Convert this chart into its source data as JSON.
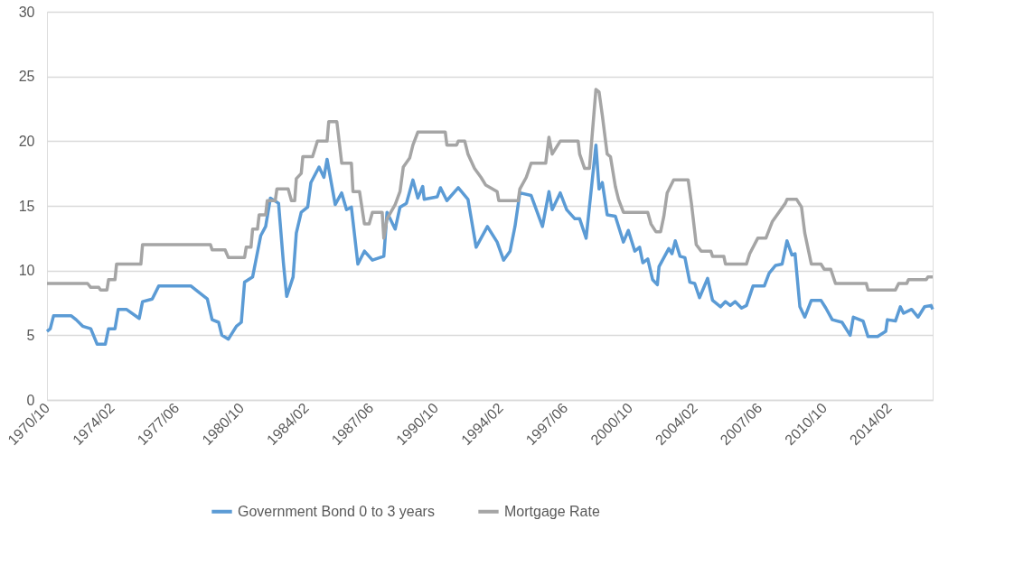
{
  "chart_data": {
    "type": "line",
    "xlim": [
      "1970-10",
      "2016-05"
    ],
    "xticks": [
      {
        "value": "1970-10",
        "label": "1970/10"
      },
      {
        "value": "1974-02",
        "label": "1974/02"
      },
      {
        "value": "1977-06",
        "label": "1977/06"
      },
      {
        "value": "1980-10",
        "label": "1980/10"
      },
      {
        "value": "1984-02",
        "label": "1984/02"
      },
      {
        "value": "1987-06",
        "label": "1987/06"
      },
      {
        "value": "1990-10",
        "label": "1990/10"
      },
      {
        "value": "1994-02",
        "label": "1994/02"
      },
      {
        "value": "1997-06",
        "label": "1997/06"
      },
      {
        "value": "2000-10",
        "label": "2000/10"
      },
      {
        "value": "2004-02",
        "label": "2004/02"
      },
      {
        "value": "2007-06",
        "label": "2007/06"
      },
      {
        "value": "2010-10",
        "label": "2010/10"
      },
      {
        "value": "2014-02",
        "label": "2014/02"
      }
    ],
    "ylim": [
      0,
      30
    ],
    "yticks": [
      0,
      5,
      10,
      15,
      20,
      25,
      30
    ],
    "grid": "y",
    "legend": "bottom",
    "line_style": "solid",
    "series": [
      {
        "name": "Government Bond 0 to 3 years",
        "color": "#5b9bd5",
        "x": [
          "1970-10",
          "1970-12",
          "1971-02",
          "1972-01",
          "1972-04",
          "1972-08",
          "1973-01",
          "1973-05",
          "1973-10",
          "1973-12",
          "1974-04",
          "1974-06",
          "1974-11",
          "1975-07",
          "1975-09",
          "1976-03",
          "1976-07",
          "1978-03",
          "1978-07",
          "1979-01",
          "1979-04",
          "1979-08",
          "1979-10",
          "1980-02",
          "1980-07",
          "1980-10",
          "1980-12",
          "1981-05",
          "1981-10",
          "1982-01",
          "1982-04",
          "1982-09",
          "1982-12",
          "1983-02",
          "1983-06",
          "1983-08",
          "1983-11",
          "1984-03",
          "1984-05",
          "1984-10",
          "1985-01",
          "1985-03",
          "1985-08",
          "1985-12",
          "1986-03",
          "1986-06",
          "1986-10",
          "1987-02",
          "1987-07",
          "1988-02",
          "1988-04",
          "1988-09",
          "1988-12",
          "1989-04",
          "1989-08",
          "1989-11",
          "1990-02",
          "1990-03",
          "1990-11",
          "1991-01",
          "1991-05",
          "1991-12",
          "1992-06",
          "1992-11",
          "1993-02",
          "1993-06",
          "1993-12",
          "1994-04",
          "1994-08",
          "1994-11",
          "1995-02",
          "1995-09",
          "1996-04",
          "1996-08",
          "1996-10",
          "1997-03",
          "1997-07",
          "1997-12",
          "1998-03",
          "1998-07",
          "1999-01",
          "1999-03",
          "1999-05",
          "1999-08",
          "2000-01",
          "2000-06",
          "2000-09",
          "2001-01",
          "2001-04",
          "2001-06",
          "2001-09",
          "2001-12",
          "2002-03",
          "2002-04",
          "2002-10",
          "2002-12",
          "2003-02",
          "2003-05",
          "2003-08",
          "2003-11",
          "2004-02",
          "2004-05",
          "2004-10",
          "2005-01",
          "2005-06",
          "2005-09",
          "2005-12",
          "2006-03",
          "2006-07",
          "2006-10",
          "2007-02",
          "2007-07",
          "2007-09",
          "2007-12",
          "2008-04",
          "2008-08",
          "2008-11",
          "2009-02",
          "2009-04",
          "2009-07",
          "2009-10",
          "2010-02",
          "2010-08",
          "2010-11",
          "2011-03",
          "2011-09",
          "2012-02",
          "2012-04",
          "2012-10",
          "2013-01",
          "2013-07",
          "2013-12",
          "2014-01",
          "2014-06",
          "2014-09",
          "2014-11",
          "2015-04",
          "2015-08",
          "2015-12",
          "2016-04",
          "2016-05"
        ],
        "values": [
          5.3,
          5.5,
          6.5,
          6.5,
          6.2,
          5.7,
          5.5,
          4.3,
          4.3,
          5.5,
          5.5,
          7.0,
          7.0,
          6.3,
          7.6,
          7.8,
          8.8,
          8.8,
          8.4,
          7.8,
          6.2,
          6.0,
          5.0,
          4.7,
          5.7,
          6.0,
          9.1,
          9.5,
          12.7,
          13.4,
          15.6,
          15.2,
          10.6,
          8.0,
          9.5,
          12.9,
          14.5,
          14.9,
          16.8,
          18.0,
          17.2,
          18.6,
          15.1,
          16.0,
          14.7,
          14.9,
          10.5,
          11.5,
          10.8,
          11.1,
          14.5,
          13.2,
          14.9,
          15.2,
          17.0,
          15.6,
          16.5,
          15.5,
          15.7,
          16.4,
          15.4,
          16.4,
          15.5,
          11.8,
          12.5,
          13.4,
          12.2,
          10.8,
          11.5,
          13.4,
          16.0,
          15.8,
          13.4,
          16.1,
          14.7,
          16.0,
          14.7,
          14.0,
          14.0,
          12.5,
          19.7,
          16.3,
          16.8,
          14.3,
          14.2,
          12.2,
          13.1,
          11.5,
          11.8,
          10.6,
          10.9,
          9.3,
          8.9,
          10.3,
          11.7,
          11.3,
          12.3,
          11.1,
          11.0,
          9.1,
          9.0,
          7.9,
          9.4,
          7.7,
          7.2,
          7.6,
          7.3,
          7.6,
          7.1,
          7.3,
          8.8,
          8.8,
          8.8,
          9.8,
          10.4,
          10.5,
          12.3,
          11.2,
          11.3,
          7.2,
          6.4,
          7.7,
          7.7,
          7.1,
          6.2,
          6.0,
          5.0,
          6.4,
          6.1,
          4.9,
          4.9,
          5.3,
          6.2,
          6.1,
          7.2,
          6.7,
          7.0,
          6.4,
          7.2,
          7.3,
          7.0
        ]
      },
      {
        "name": "Mortgage Rate",
        "color": "#a5a5a5",
        "x": [
          "1970-10",
          "1972-11",
          "1973-01",
          "1973-06",
          "1973-07",
          "1973-11",
          "1973-12",
          "1974-04",
          "1974-05",
          "1975-08",
          "1975-09",
          "1979-03",
          "1979-04",
          "1979-12",
          "1980-02",
          "1980-12",
          "1981-01",
          "1981-04",
          "1981-05",
          "1981-08",
          "1981-09",
          "1982-01",
          "1982-02",
          "1982-07",
          "1982-08",
          "1983-03",
          "1983-05",
          "1983-07",
          "1983-08",
          "1983-11",
          "1983-12",
          "1984-06",
          "1984-09",
          "1985-03",
          "1985-04",
          "1985-09",
          "1985-12",
          "1986-06",
          "1986-07",
          "1986-11",
          "1987-02",
          "1987-05",
          "1987-07",
          "1988-01",
          "1988-02",
          "1988-04",
          "1988-09",
          "1988-12",
          "1989-02",
          "1989-06",
          "1989-08",
          "1989-11",
          "1991-04",
          "1991-05",
          "1991-11",
          "1991-12",
          "1992-04",
          "1992-06",
          "1992-10",
          "1993-02",
          "1993-05",
          "1993-12",
          "1994-01",
          "1995-01",
          "1995-02",
          "1995-06",
          "1995-09",
          "1996-06",
          "1996-08",
          "1996-10",
          "1997-03",
          "1998-02",
          "1998-03",
          "1998-06",
          "1998-09",
          "1999-01",
          "1999-03",
          "1999-05",
          "1999-08",
          "1999-10",
          "2000-01",
          "2000-03",
          "2000-06",
          "2001-09",
          "2001-11",
          "2002-02",
          "2002-05",
          "2002-07",
          "2002-09",
          "2003-01",
          "2003-10",
          "2003-12",
          "2004-03",
          "2004-06",
          "2004-12",
          "2005-01",
          "2005-08",
          "2005-09",
          "2006-10",
          "2006-12",
          "2007-05",
          "2007-10",
          "2008-02",
          "2008-06",
          "2008-10",
          "2008-11",
          "2009-05",
          "2009-08",
          "2009-10",
          "2010-01",
          "2010-02",
          "2010-08",
          "2010-10",
          "2011-02",
          "2011-05",
          "2012-12",
          "2013-01",
          "2014-06",
          "2014-08",
          "2015-01",
          "2015-02",
          "2016-01",
          "2016-02",
          "2016-05"
        ],
        "values": [
          9.0,
          9.0,
          8.7,
          8.7,
          8.5,
          8.5,
          9.3,
          9.3,
          10.5,
          10.5,
          12.0,
          12.0,
          11.6,
          11.6,
          11.0,
          11.0,
          11.8,
          11.8,
          13.2,
          13.2,
          14.3,
          14.3,
          15.4,
          15.4,
          16.3,
          16.3,
          15.4,
          15.4,
          17.1,
          17.5,
          18.8,
          18.8,
          20.0,
          20.0,
          21.5,
          21.5,
          18.3,
          18.3,
          16.1,
          16.1,
          13.6,
          13.6,
          14.5,
          14.5,
          12.5,
          14.0,
          15.1,
          16.1,
          18.0,
          18.7,
          19.7,
          20.7,
          20.7,
          19.7,
          19.7,
          20.0,
          20.0,
          19.0,
          17.9,
          17.2,
          16.6,
          16.1,
          15.4,
          15.4,
          16.3,
          17.2,
          18.3,
          18.3,
          20.3,
          19.0,
          20.0,
          20.0,
          19.0,
          17.9,
          17.9,
          24.0,
          23.8,
          22.0,
          19.0,
          18.8,
          16.5,
          15.5,
          14.5,
          14.5,
          13.6,
          13.0,
          13.0,
          14.2,
          16.0,
          17.0,
          17.0,
          15.2,
          12.0,
          11.5,
          11.5,
          11.1,
          11.1,
          10.5,
          10.5,
          11.3,
          12.5,
          12.5,
          13.8,
          14.5,
          15.2,
          15.5,
          15.5,
          14.9,
          12.9,
          11.1,
          10.5,
          10.5,
          10.1,
          10.1,
          9.0,
          9.0,
          8.5,
          8.5,
          9.0,
          9.0,
          9.3,
          9.3,
          9.5,
          9.5
        ]
      }
    ]
  }
}
